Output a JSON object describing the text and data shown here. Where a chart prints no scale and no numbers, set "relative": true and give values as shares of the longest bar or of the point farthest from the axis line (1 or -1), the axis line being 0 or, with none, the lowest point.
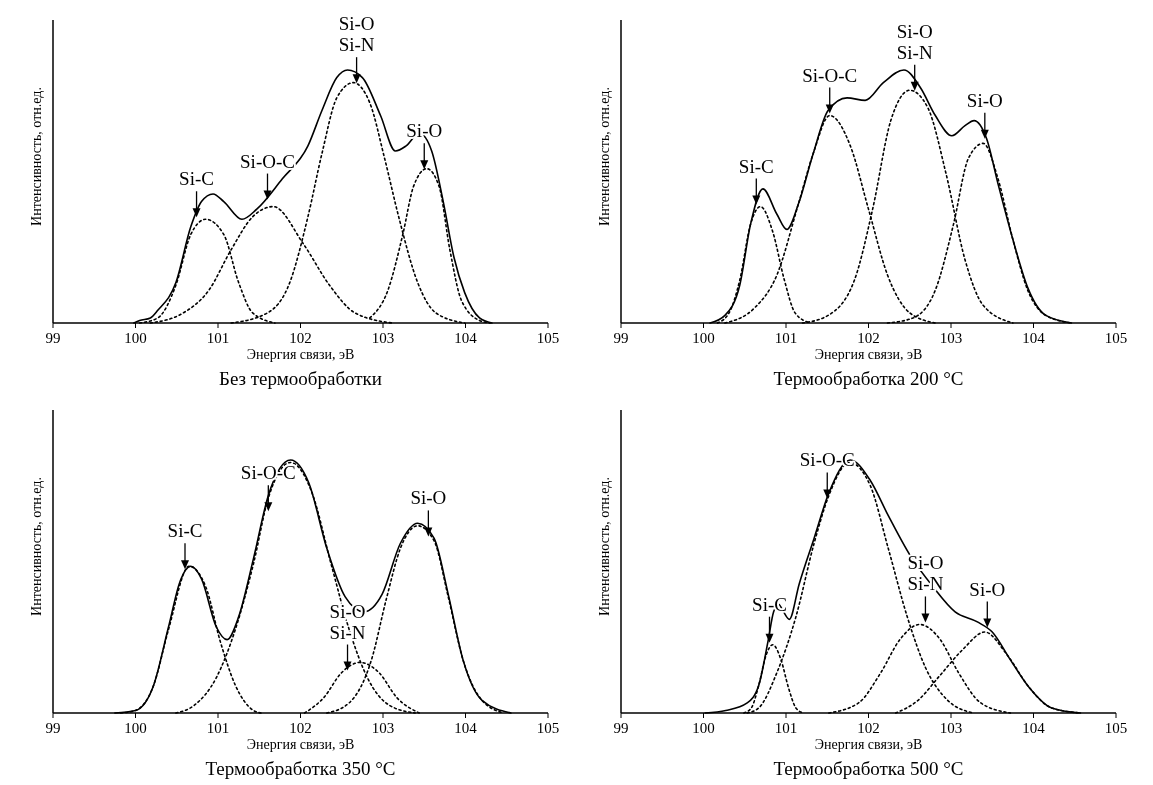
{
  "chart_data": [
    {
      "type": "line",
      "title": "Без термообработки",
      "xlabel": "Энергия связи, эВ",
      "ylabel": "Интенсивность, отн.ед.",
      "relative": true,
      "xlim": [
        99,
        105
      ],
      "xticks": [
        99,
        100,
        101,
        102,
        103,
        104,
        105
      ],
      "series": [
        {
          "color": "#000000",
          "line_style": "solid",
          "x": [
            99.98,
            100.05,
            100.18,
            100.27,
            100.49,
            100.67,
            100.8,
            100.94,
            101.07,
            101.29,
            101.47,
            101.78,
            102.09,
            102.26,
            102.44,
            102.57,
            102.75,
            102.97,
            103.15,
            103.28,
            103.44,
            103.59,
            103.73,
            103.86,
            103.99,
            104.17,
            104.32
          ],
          "values": [
            0,
            0.01,
            0.02,
            0.05,
            0.16,
            0.38,
            0.48,
            0.51,
            0.48,
            0.41,
            0.45,
            0.57,
            0.7,
            0.84,
            0.97,
            1.0,
            0.97,
            0.82,
            0.68,
            0.7,
            0.75,
            0.68,
            0.48,
            0.26,
            0.12,
            0.02,
            0
          ]
        },
        {
          "color": "#000000",
          "line_style": "dotted",
          "x": [
            100.05,
            100.27,
            100.49,
            100.67,
            100.85,
            101.07,
            101.25,
            101.42,
            101.69
          ],
          "values": [
            0,
            0.02,
            0.15,
            0.35,
            0.41,
            0.35,
            0.16,
            0.04,
            0
          ]
        },
        {
          "color": "#000000",
          "line_style": "dotted",
          "x": [
            100.18,
            100.58,
            100.89,
            101.16,
            101.42,
            101.67,
            102.04,
            102.35,
            102.66,
            103.11
          ],
          "values": [
            0,
            0.04,
            0.13,
            0.29,
            0.42,
            0.46,
            0.31,
            0.15,
            0.04,
            0
          ]
        },
        {
          "color": "#000000",
          "line_style": "dotted",
          "x": [
            101.16,
            101.6,
            101.87,
            102.09,
            102.26,
            102.44,
            102.64,
            102.84,
            103.02,
            103.19,
            103.42,
            103.64,
            103.99
          ],
          "values": [
            0,
            0.04,
            0.16,
            0.42,
            0.67,
            0.89,
            0.95,
            0.87,
            0.65,
            0.42,
            0.16,
            0.04,
            0
          ]
        },
        {
          "color": "#000000",
          "line_style": "dotted",
          "x": [
            102.84,
            103.06,
            103.24,
            103.37,
            103.53,
            103.68,
            103.81,
            103.95,
            104.17,
            104.3
          ],
          "values": [
            0.02,
            0.13,
            0.35,
            0.54,
            0.61,
            0.54,
            0.29,
            0.09,
            0.01,
            0
          ]
        }
      ],
      "annotations": [
        {
          "text": "Si-C",
          "x": 100.74,
          "y": 0.41
        },
        {
          "text": "Si-O-C",
          "x": 101.6,
          "y": 0.48
        },
        {
          "text": "Si-O\nSi-N",
          "x": 102.68,
          "y": 0.94
        },
        {
          "text": "Si-O",
          "x": 103.5,
          "y": 0.6
        }
      ]
    },
    {
      "type": "line",
      "title": "Термообработка 200 °C",
      "xlabel": "Энергия связи, эВ",
      "ylabel": "Интенсивность, отн.ед.",
      "relative": true,
      "xlim": [
        99,
        105
      ],
      "xticks": [
        99,
        100,
        101,
        102,
        103,
        104,
        105
      ],
      "series": [
        {
          "color": "#000000",
          "line_style": "solid",
          "x": [
            100.08,
            100.26,
            100.44,
            100.57,
            100.72,
            100.89,
            101.01,
            101.15,
            101.33,
            101.51,
            101.74,
            101.96,
            102.18,
            102.43,
            102.63,
            102.81,
            103.01,
            103.17,
            103.28,
            103.43,
            103.57,
            103.75,
            103.93,
            104.15,
            104.46
          ],
          "values": [
            0,
            0.03,
            0.15,
            0.39,
            0.53,
            0.43,
            0.37,
            0.47,
            0.67,
            0.84,
            0.89,
            0.88,
            0.95,
            1.0,
            0.93,
            0.82,
            0.74,
            0.78,
            0.8,
            0.73,
            0.55,
            0.33,
            0.14,
            0.03,
            0
          ]
        },
        {
          "color": "#000000",
          "line_style": "dotted",
          "x": [
            100.17,
            100.31,
            100.44,
            100.57,
            100.69,
            100.84,
            100.98,
            101.11,
            101.29
          ],
          "values": [
            0,
            0.04,
            0.17,
            0.39,
            0.46,
            0.36,
            0.17,
            0.04,
            0
          ]
        },
        {
          "color": "#000000",
          "line_style": "dotted",
          "x": [
            100.26,
            100.62,
            100.89,
            101.15,
            101.33,
            101.53,
            101.78,
            102.0,
            102.23,
            102.5,
            102.81
          ],
          "values": [
            0,
            0.06,
            0.19,
            0.47,
            0.67,
            0.82,
            0.7,
            0.45,
            0.19,
            0.04,
            0
          ]
        },
        {
          "color": "#000000",
          "line_style": "dotted",
          "x": [
            101.2,
            101.51,
            101.83,
            102.05,
            102.27,
            102.5,
            102.72,
            102.94,
            103.17,
            103.39,
            103.75
          ],
          "values": [
            0,
            0.03,
            0.17,
            0.45,
            0.8,
            0.92,
            0.85,
            0.59,
            0.25,
            0.07,
            0
          ]
        },
        {
          "color": "#000000",
          "line_style": "dotted",
          "x": [
            102.23,
            102.54,
            102.81,
            103.03,
            103.21,
            103.39,
            103.57,
            103.75,
            103.93,
            104.15,
            104.46
          ],
          "values": [
            0,
            0.02,
            0.13,
            0.39,
            0.65,
            0.71,
            0.57,
            0.33,
            0.13,
            0.03,
            0
          ]
        }
      ],
      "annotations": [
        {
          "text": "Si-C",
          "x": 100.64,
          "y": 0.46
        },
        {
          "text": "Si-O-C",
          "x": 101.53,
          "y": 0.82
        },
        {
          "text": "Si-O\nSi-N",
          "x": 102.56,
          "y": 0.91
        },
        {
          "text": "Si-O",
          "x": 103.41,
          "y": 0.72
        }
      ]
    },
    {
      "type": "line",
      "title": "Термообработка 350 °C",
      "xlabel": "Энергия связи, эВ",
      "ylabel": "Интенсивность, отн.ед.",
      "relative": true,
      "xlim": [
        99,
        105
      ],
      "xticks": [
        99,
        100,
        101,
        102,
        103,
        104,
        105
      ],
      "series": [
        {
          "color": "#000000",
          "line_style": "solid",
          "x": [
            99.75,
            100.0,
            100.22,
            100.4,
            100.54,
            100.67,
            100.8,
            100.98,
            101.11,
            101.25,
            101.43,
            101.61,
            101.88,
            102.1,
            102.32,
            102.54,
            102.77,
            102.99,
            103.21,
            103.42,
            103.62,
            103.79,
            103.97,
            104.2,
            104.55
          ],
          "values": [
            0,
            0.01,
            0.11,
            0.34,
            0.52,
            0.58,
            0.53,
            0.34,
            0.29,
            0.38,
            0.61,
            0.86,
            1.0,
            0.91,
            0.65,
            0.46,
            0.4,
            0.47,
            0.67,
            0.75,
            0.69,
            0.47,
            0.21,
            0.05,
            0
          ]
        },
        {
          "color": "#000000",
          "line_style": "dotted",
          "x": [
            99.82,
            100.0,
            100.22,
            100.4,
            100.65,
            100.85,
            101.03,
            101.21,
            101.43,
            101.52
          ],
          "values": [
            0,
            0.01,
            0.11,
            0.33,
            0.58,
            0.5,
            0.28,
            0.11,
            0.01,
            0
          ]
        },
        {
          "color": "#000000",
          "line_style": "dotted",
          "x": [
            100.49,
            100.71,
            100.98,
            101.21,
            101.43,
            101.61,
            101.88,
            102.14,
            102.37,
            102.59,
            102.81,
            103.08,
            103.39
          ],
          "values": [
            0,
            0.03,
            0.14,
            0.33,
            0.59,
            0.85,
            0.99,
            0.87,
            0.59,
            0.33,
            0.14,
            0.03,
            0
          ]
        },
        {
          "color": "#000000",
          "line_style": "dotted",
          "x": [
            102.05,
            102.28,
            102.5,
            102.72,
            102.95,
            103.17,
            103.44
          ],
          "values": [
            0,
            0.06,
            0.16,
            0.2,
            0.16,
            0.06,
            0
          ]
        },
        {
          "color": "#000000",
          "line_style": "dotted",
          "x": [
            102.32,
            102.59,
            102.86,
            103.04,
            103.21,
            103.42,
            103.62,
            103.79,
            103.97,
            104.2,
            104.46
          ],
          "values": [
            0,
            0.04,
            0.21,
            0.45,
            0.65,
            0.74,
            0.68,
            0.46,
            0.21,
            0.05,
            0
          ]
        }
      ],
      "annotations": [
        {
          "text": "Si-C",
          "x": 100.6,
          "y": 0.56
        },
        {
          "text": "Si-O-C",
          "x": 101.61,
          "y": 0.79
        },
        {
          "text": "Si-O\nSi-N",
          "x": 102.57,
          "y": 0.16
        },
        {
          "text": "Si-O",
          "x": 103.55,
          "y": 0.69
        }
      ]
    },
    {
      "type": "line",
      "title": "Термообработка 500 °C",
      "xlabel": "Энергия связи, эВ",
      "ylabel": "Интенсивность, отн.ед.",
      "relative": true,
      "xlim": [
        99,
        105
      ],
      "xticks": [
        99,
        100,
        101,
        102,
        103,
        104,
        105
      ],
      "series": [
        {
          "color": "#000000",
          "line_style": "solid",
          "x": [
            100.02,
            100.27,
            100.53,
            100.67,
            100.78,
            100.85,
            100.91,
            100.97,
            101.04,
            101.16,
            101.34,
            101.52,
            101.78,
            102.02,
            102.24,
            102.51,
            102.78,
            103.05,
            103.32,
            103.5,
            103.72,
            103.95,
            104.22,
            104.57
          ],
          "values": [
            0,
            0.01,
            0.04,
            0.11,
            0.28,
            0.4,
            0.43,
            0.4,
            0.37,
            0.51,
            0.69,
            0.87,
            1.0,
            0.92,
            0.78,
            0.62,
            0.5,
            0.4,
            0.36,
            0.32,
            0.21,
            0.1,
            0.02,
            0
          ]
        },
        {
          "color": "#000000",
          "line_style": "dotted",
          "x": [
            100.49,
            100.58,
            100.67,
            100.76,
            100.84,
            100.94,
            101.03,
            101.12,
            101.21
          ],
          "values": [
            0,
            0.02,
            0.11,
            0.23,
            0.27,
            0.21,
            0.1,
            0.02,
            0
          ]
        },
        {
          "color": "#000000",
          "line_style": "dotted",
          "x": [
            100.53,
            100.67,
            100.89,
            101.12,
            101.34,
            101.52,
            101.77,
            102.02,
            102.24,
            102.47,
            102.69,
            102.96,
            103.27
          ],
          "values": [
            0,
            0.02,
            0.16,
            0.38,
            0.67,
            0.86,
            0.99,
            0.9,
            0.65,
            0.38,
            0.18,
            0.05,
            0
          ]
        },
        {
          "color": "#000000",
          "line_style": "dotted",
          "x": [
            101.52,
            101.88,
            102.15,
            102.38,
            102.62,
            102.87,
            103.09,
            103.36,
            103.72
          ],
          "values": [
            0,
            0.04,
            0.16,
            0.29,
            0.35,
            0.29,
            0.16,
            0.04,
            0
          ]
        },
        {
          "color": "#000000",
          "line_style": "dotted",
          "x": [
            102.33,
            102.6,
            102.87,
            103.14,
            103.41,
            103.68,
            103.95,
            104.22,
            104.57
          ],
          "values": [
            0,
            0.05,
            0.15,
            0.25,
            0.32,
            0.23,
            0.1,
            0.02,
            0
          ]
        }
      ],
      "annotations": [
        {
          "text": "Si-C",
          "x": 100.8,
          "y": 0.27
        },
        {
          "text": "Si-O-C",
          "x": 101.5,
          "y": 0.84
        },
        {
          "text": "Si-O\nSi-N",
          "x": 102.69,
          "y": 0.35
        },
        {
          "text": "Si-O",
          "x": 103.44,
          "y": 0.33
        }
      ]
    }
  ]
}
